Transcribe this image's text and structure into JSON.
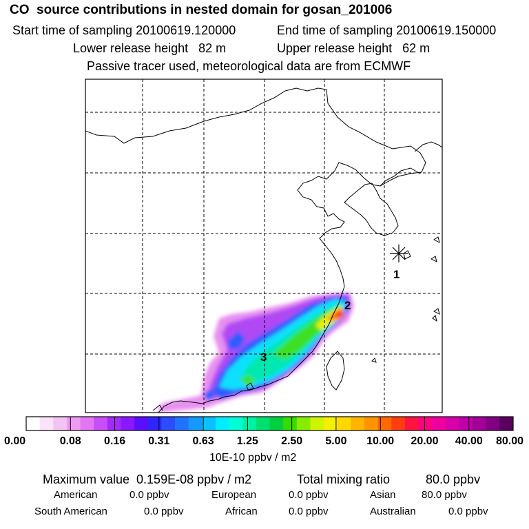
{
  "header": {
    "title": "CO  source contributions in nested domain for gosan_201006",
    "start_label": "Start time of sampling 20100619.120000",
    "end_label": "End time of sampling 20100619.150000",
    "lower_label": "Lower release height   82 m",
    "upper_label": "Upper release height   62 m",
    "tracer_note": "Passive tracer used, meteorological data are from ECMWF"
  },
  "map": {
    "markers": [
      {
        "label": "1",
        "kind": "receptor"
      },
      {
        "label": "2",
        "kind": "source"
      },
      {
        "label": "3",
        "kind": "source"
      }
    ]
  },
  "colorbar": {
    "tick_labels": [
      "0.00",
      "0.08",
      "0.16",
      "0.31",
      "0.63",
      "1.25",
      "2.50",
      "5.00",
      "10.00",
      "20.00",
      "40.00",
      "80.00"
    ],
    "unit": "10E-10 ppbv / m2",
    "colors": [
      "#ffffff",
      "#fbe3fb",
      "#f3c3f3",
      "#ef9bf3",
      "#e376f3",
      "#c84ff7",
      "#a32bf7",
      "#8b17ff",
      "#5a0dff",
      "#2f26ff",
      "#2b4dff",
      "#2173ff",
      "#1399ff",
      "#0cbfff",
      "#00ecff",
      "#00ffd6",
      "#00f0a4",
      "#00e070",
      "#00d040",
      "#35dc00",
      "#86ec00",
      "#cff400",
      "#f4f000",
      "#ffd800",
      "#ffb400",
      "#ff9400",
      "#ff6a00",
      "#ff3e10",
      "#ff1440",
      "#ff0080",
      "#ee00a0",
      "#d800a8",
      "#bf00a8",
      "#a20096",
      "#7f0080",
      "#5a0060"
    ]
  },
  "footer": {
    "max_label": "Maximum value  0.159E-08 ppbv / m2",
    "total_label": "Total mixing ratio",
    "total_value": "80.0 ppbv",
    "regions": [
      {
        "name": "American",
        "value": "0.0 ppbv"
      },
      {
        "name": "European",
        "value": "0.0 ppbv"
      },
      {
        "name": "Asian",
        "value": "80.0 ppbv"
      },
      {
        "name": "South American",
        "value": "0.0 ppbv"
      },
      {
        "name": "African",
        "value": "0.0 ppbv"
      },
      {
        "name": "Australian",
        "value": "0.0 ppbv"
      }
    ]
  }
}
